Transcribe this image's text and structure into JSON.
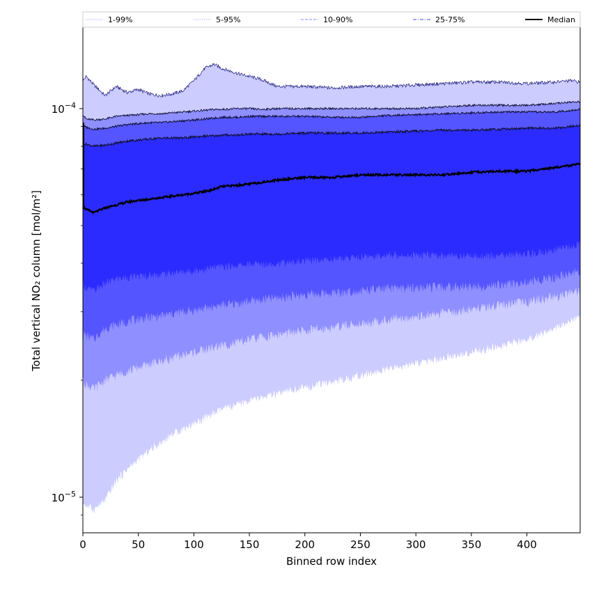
{
  "chart_data": {
    "type": "area",
    "xlabel": "Binned row index",
    "ylabel": "Total vertical NO₂ column [mol/m²]",
    "xlim": [
      0,
      448
    ],
    "ylim": [
      8.1e-06,
      0.000162
    ],
    "yscale": "log",
    "x_ticks": [
      0,
      50,
      100,
      150,
      200,
      250,
      300,
      350,
      400
    ],
    "y_major_ticks": [
      {
        "value": 1e-05,
        "base": "10",
        "exp": "−5"
      },
      {
        "value": 0.0001,
        "base": "10",
        "exp": "−4"
      }
    ],
    "legend_position": "top",
    "legend": [
      {
        "label": "1-99%",
        "color": "#d8d8ff",
        "style": "solid"
      },
      {
        "label": "5-95%",
        "color": "#b0b0ff",
        "style": "dotted"
      },
      {
        "label": "10-90%",
        "color": "#8080ff",
        "style": "dashed"
      },
      {
        "label": "25-75%",
        "color": "#4444ff",
        "style": "dashdot"
      },
      {
        "label": "Median",
        "color": "#000000",
        "style": "solid"
      }
    ],
    "band_colors": [
      "#ccccff",
      "#8f8fff",
      "#5555ff",
      "#2b2bff"
    ],
    "x": [
      0,
      3,
      10,
      20,
      30,
      40,
      50,
      60,
      70,
      80,
      90,
      100,
      110,
      118,
      125,
      140,
      150,
      160,
      175,
      200,
      225,
      250,
      275,
      300,
      325,
      350,
      375,
      400,
      425,
      440,
      448
    ],
    "series": [
      {
        "name": "1-99%",
        "role": "upper",
        "values": [
          0.000118,
          0.000121,
          0.000115,
          0.000108,
          0.000114,
          0.00011,
          0.000112,
          0.000109,
          0.000108,
          0.000109,
          0.000111,
          0.000118,
          0.000127,
          0.00013,
          0.000127,
          0.000123,
          0.000121,
          0.000119,
          0.000114,
          0.000114,
          0.000113,
          0.000114,
          0.000114,
          0.000115,
          0.000116,
          0.000117,
          0.000117,
          0.000116,
          0.000117,
          0.000118,
          0.000117
        ]
      },
      {
        "name": "5-95%",
        "role": "upper",
        "values": [
          9.65e-05,
          9.4e-05,
          9.35e-05,
          9.4e-05,
          9.55e-05,
          9.6e-05,
          9.65e-05,
          9.7e-05,
          9.7e-05,
          9.75e-05,
          9.8e-05,
          9.85e-05,
          9.9e-05,
          9.95e-05,
          9.95e-05,
          0.0001,
          0.0001,
          9.95e-05,
          0.0001,
          0.0001,
          0.0001,
          0.0001,
          0.0001,
          0.0001,
          0.000101,
          0.000102,
          0.000102,
          0.000102,
          0.000103,
          0.000104,
          0.000104
        ]
      },
      {
        "name": "10-90%",
        "role": "upper",
        "values": [
          9.05e-05,
          8.95e-05,
          8.85e-05,
          8.9e-05,
          9e-05,
          9.1e-05,
          9.15e-05,
          9.2e-05,
          9.2e-05,
          9.25e-05,
          9.3e-05,
          9.35e-05,
          9.4e-05,
          9.45e-05,
          9.5e-05,
          9.5e-05,
          9.55e-05,
          9.55e-05,
          9.55e-05,
          9.55e-05,
          9.5e-05,
          9.5e-05,
          9.6e-05,
          9.65e-05,
          9.7e-05,
          9.75e-05,
          9.8e-05,
          9.8e-05,
          9.8e-05,
          9.9e-05,
          9.95e-05
        ]
      },
      {
        "name": "25-75%",
        "role": "upper",
        "values": [
          8.15e-05,
          8.1e-05,
          8e-05,
          8.05e-05,
          8.15e-05,
          8.25e-05,
          8.3e-05,
          8.35e-05,
          8.4e-05,
          8.4e-05,
          8.4e-05,
          8.45e-05,
          8.5e-05,
          8.5e-05,
          8.55e-05,
          8.55e-05,
          8.6e-05,
          8.6e-05,
          8.6e-05,
          8.65e-05,
          8.65e-05,
          8.65e-05,
          8.7e-05,
          8.75e-05,
          8.8e-05,
          8.8e-05,
          8.85e-05,
          8.9e-05,
          8.9e-05,
          9e-05,
          9.05e-05
        ]
      },
      {
        "name": "Median",
        "role": "center",
        "values": [
          5.6e-05,
          5.5e-05,
          5.4e-05,
          5.55e-05,
          5.65e-05,
          5.75e-05,
          5.8e-05,
          5.85e-05,
          5.9e-05,
          5.95e-05,
          6e-05,
          6.05e-05,
          6.12e-05,
          6.2e-05,
          6.3e-05,
          6.35e-05,
          6.4e-05,
          6.45e-05,
          6.55e-05,
          6.65e-05,
          6.65e-05,
          6.75e-05,
          6.75e-05,
          6.75e-05,
          6.75e-05,
          6.85e-05,
          6.9e-05,
          6.9e-05,
          7.05e-05,
          7.15e-05,
          7.2e-05
        ]
      },
      {
        "name": "25-75%",
        "role": "lower",
        "values": [
          3.55e-05,
          3.45e-05,
          3.4e-05,
          3.55e-05,
          3.65e-05,
          3.68e-05,
          3.7e-05,
          3.72e-05,
          3.75e-05,
          3.78e-05,
          3.8e-05,
          3.83e-05,
          3.86e-05,
          3.9e-05,
          3.92e-05,
          3.95e-05,
          3.97e-05,
          3.98e-05,
          4e-05,
          4.05e-05,
          4.1e-05,
          4.15e-05,
          4.2e-05,
          4.2e-05,
          4.18e-05,
          4.18e-05,
          4.18e-05,
          4.22e-05,
          4.32e-05,
          4.42e-05,
          4.48e-05
        ]
      },
      {
        "name": "10-90%",
        "role": "lower",
        "values": [
          2.65e-05,
          2.6e-05,
          2.55e-05,
          2.72e-05,
          2.78e-05,
          2.83e-05,
          2.88e-05,
          2.9e-05,
          2.93e-05,
          2.96e-05,
          3e-05,
          3.03e-05,
          3.06e-05,
          3.1e-05,
          3.12e-05,
          3.16e-05,
          3.2e-05,
          3.22e-05,
          3.26e-05,
          3.32e-05,
          3.36e-05,
          3.4e-05,
          3.44e-05,
          3.46e-05,
          3.47e-05,
          3.48e-05,
          3.52e-05,
          3.57e-05,
          3.68e-05,
          3.78e-05,
          3.82e-05
        ]
      },
      {
        "name": "5-95%",
        "role": "lower",
        "values": [
          2e-05,
          1.95e-05,
          1.9e-05,
          2e-05,
          2.06e-05,
          2.11e-05,
          2.16e-05,
          2.2e-05,
          2.24e-05,
          2.28e-05,
          2.32e-05,
          2.36e-05,
          2.4e-05,
          2.43e-05,
          2.46e-05,
          2.5e-05,
          2.55e-05,
          2.58e-05,
          2.62e-05,
          2.68e-05,
          2.74e-05,
          2.8e-05,
          2.86e-05,
          2.92e-05,
          2.98e-05,
          3.05e-05,
          3.12e-05,
          3.18e-05,
          3.28e-05,
          3.36e-05,
          3.4e-05
        ]
      },
      {
        "name": "1-99%",
        "role": "lower",
        "values": [
          9.7e-06,
          9.5e-06,
          9.3e-06,
          9.8e-06,
          1.1e-05,
          1.18e-05,
          1.25e-05,
          1.32e-05,
          1.38e-05,
          1.45e-05,
          1.5e-05,
          1.55e-05,
          1.6e-05,
          1.64e-05,
          1.68e-05,
          1.73e-05,
          1.77e-05,
          1.8e-05,
          1.84e-05,
          1.92e-05,
          1.98e-05,
          2.06e-05,
          2.13e-05,
          2.21e-05,
          2.28e-05,
          2.36e-05,
          2.45e-05,
          2.54e-05,
          2.72e-05,
          2.84e-05,
          2.9e-05
        ]
      }
    ]
  }
}
